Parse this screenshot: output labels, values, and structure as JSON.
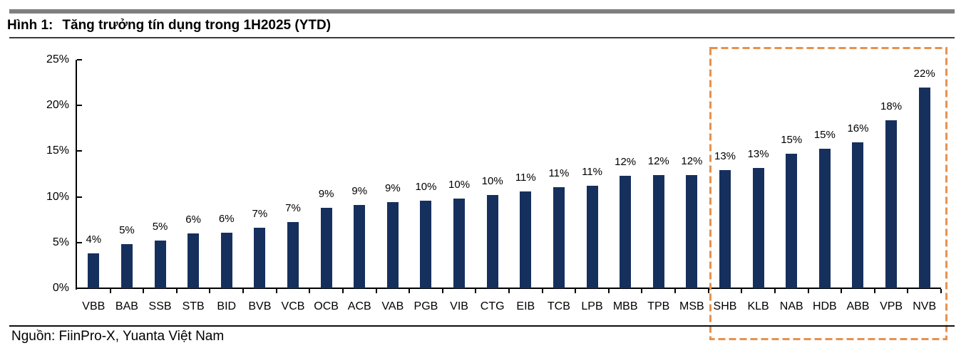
{
  "header": {
    "figure_label": "Hình 1:",
    "title": "Tăng trưởng tín dụng trong 1H2025 (YTD)"
  },
  "source": "Nguồn: FiinPro-X, Yuanta Việt Nam",
  "colors": {
    "bar": "#16305E",
    "highlight_box": "#E8914C",
    "accent_bar": "#7F7F7F",
    "axis": "#000000"
  },
  "chart_data": {
    "type": "bar",
    "title": "Tăng trưởng tín dụng trong 1H2025 (YTD)",
    "categories": [
      "VBB",
      "BAB",
      "SSB",
      "STB",
      "BID",
      "BVB",
      "VCB",
      "OCB",
      "ACB",
      "VAB",
      "PGB",
      "VIB",
      "CTG",
      "EIB",
      "TCB",
      "LPB",
      "MBB",
      "TPB",
      "MSB",
      "SHB",
      "KLB",
      "NAB",
      "HDB",
      "ABB",
      "VPB",
      "NVB"
    ],
    "values": [
      3.85,
      4.8,
      5.2,
      6.0,
      6.05,
      6.65,
      7.25,
      8.8,
      9.15,
      9.4,
      9.6,
      9.8,
      10.2,
      10.6,
      11.05,
      11.2,
      12.3,
      12.35,
      12.4,
      12.9,
      13.2,
      14.7,
      15.25,
      16.0,
      18.4,
      21.95
    ],
    "labels": [
      "4%",
      "5%",
      "5%",
      "6%",
      "6%",
      "7%",
      "7%",
      "9%",
      "9%",
      "9%",
      "10%",
      "10%",
      "10%",
      "11%",
      "11%",
      "11%",
      "12%",
      "12%",
      "12%",
      "13%",
      "13%",
      "15%",
      "15%",
      "16%",
      "18%",
      "22%"
    ],
    "xlabel": "",
    "ylabel": "",
    "ylim": [
      0,
      25
    ],
    "yticks": [
      0,
      5,
      10,
      15,
      20,
      25
    ],
    "ytick_labels": [
      "0%",
      "5%",
      "10%",
      "15%",
      "20%",
      "25%"
    ],
    "grid": false,
    "legend": "none",
    "highlighted_categories": [
      "SHB",
      "KLB",
      "NAB",
      "HDB",
      "ABB",
      "VPB",
      "NVB"
    ],
    "highlight_style": "orange-dashed-box"
  }
}
